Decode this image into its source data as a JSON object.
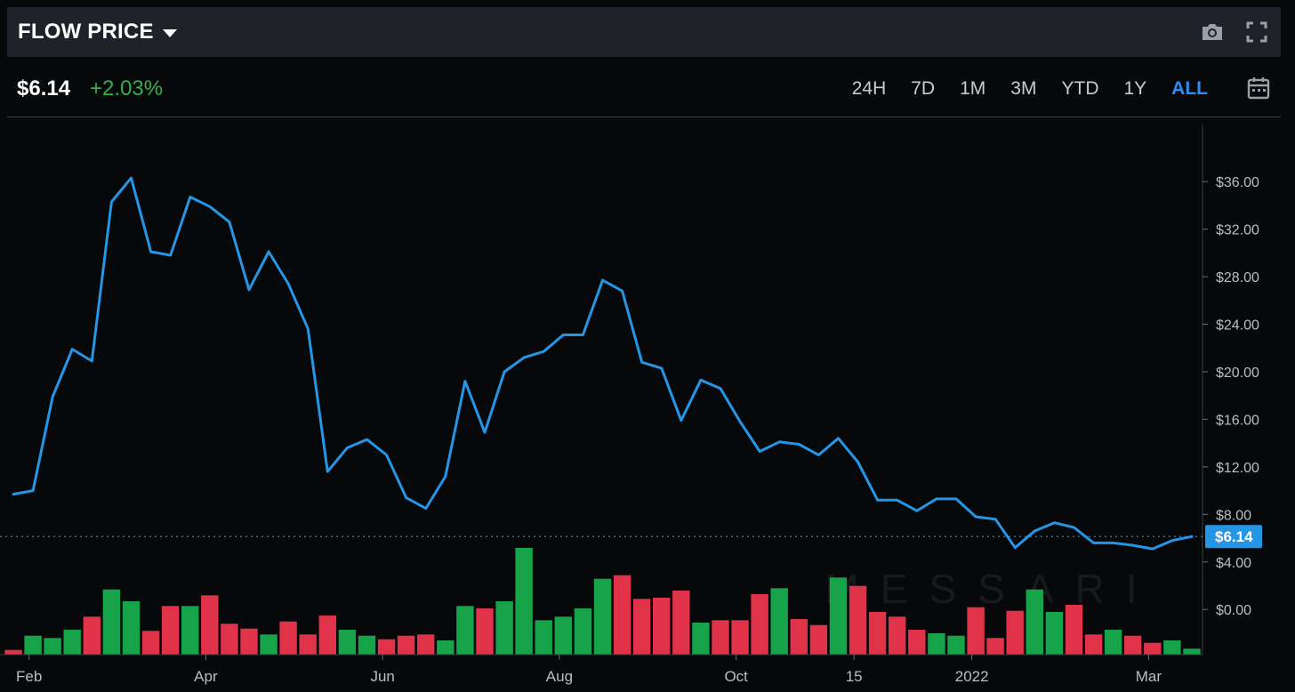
{
  "header": {
    "title": "FLOW PRICE",
    "camera_icon": "camera-icon",
    "fullscreen_icon": "fullscreen-icon"
  },
  "price_bar": {
    "price": "$6.14",
    "change": "+2.03%",
    "ranges": [
      "24H",
      "7D",
      "1M",
      "3M",
      "YTD",
      "1Y",
      "ALL"
    ],
    "active_range": "ALL",
    "calendar_icon": "calendar-icon"
  },
  "watermark": "MESSARI",
  "colors": {
    "line": "#2596e6",
    "up": "#16a34a",
    "down": "#e0334a",
    "accent": "#2f8cf3",
    "change": "#2fb24a",
    "price_tag": "#2596e6"
  },
  "chart_data": {
    "type": "line",
    "title": "FLOW PRICE",
    "ylim": [
      -3.8,
      40.8
    ],
    "y_ticks": [
      0,
      4,
      8,
      12,
      16,
      20,
      24,
      28,
      32,
      36
    ],
    "y_tick_labels": [
      "$0.00",
      "$4.00",
      "$8.00",
      "$12.00",
      "$16.00",
      "$20.00",
      "$24.00",
      "$28.00",
      "$32.00",
      "$36.00"
    ],
    "x_tick_labels": [
      "Feb",
      "Apr",
      "Jun",
      "Aug",
      "Oct",
      "15",
      "2022",
      "Mar"
    ],
    "x_tick_positions": [
      0.8,
      9.8,
      18.8,
      27.8,
      36.8,
      42.8,
      48.8,
      57.8
    ],
    "current_price": 6.14,
    "current_price_label": "$6.14",
    "series": [
      {
        "values": [
          9.7,
          10.0,
          17.9,
          21.9,
          20.9,
          34.3,
          36.3,
          30.1,
          29.8,
          34.7,
          33.9,
          32.6,
          26.9,
          30.1,
          27.4,
          23.6,
          11.6,
          13.6,
          14.3,
          13.0,
          9.4,
          8.5,
          11.2,
          19.2,
          14.9,
          20.0,
          21.2,
          21.7,
          23.1,
          23.1,
          27.7,
          26.8,
          20.8,
          20.3,
          15.9,
          19.3,
          18.6,
          15.8,
          13.3,
          14.1,
          13.9,
          13.0,
          14.4,
          12.4,
          9.2,
          9.2,
          8.3,
          9.3,
          9.3,
          7.8,
          7.6,
          5.2,
          6.6,
          7.3,
          6.9,
          5.6,
          5.6,
          5.4,
          5.1,
          5.8,
          6.14
        ]
      }
    ],
    "volume": [
      {
        "v": 0.4,
        "up": false
      },
      {
        "v": 1.6,
        "up": true
      },
      {
        "v": 1.4,
        "up": true
      },
      {
        "v": 2.1,
        "up": true
      },
      {
        "v": 3.2,
        "up": false
      },
      {
        "v": 5.5,
        "up": true
      },
      {
        "v": 4.5,
        "up": true
      },
      {
        "v": 2.0,
        "up": false
      },
      {
        "v": 4.1,
        "up": false
      },
      {
        "v": 4.1,
        "up": true
      },
      {
        "v": 5.0,
        "up": false
      },
      {
        "v": 2.6,
        "up": false
      },
      {
        "v": 2.2,
        "up": false
      },
      {
        "v": 1.7,
        "up": true
      },
      {
        "v": 2.8,
        "up": false
      },
      {
        "v": 1.7,
        "up": false
      },
      {
        "v": 3.3,
        "up": false
      },
      {
        "v": 2.1,
        "up": true
      },
      {
        "v": 1.6,
        "up": true
      },
      {
        "v": 1.3,
        "up": false
      },
      {
        "v": 1.6,
        "up": false
      },
      {
        "v": 1.7,
        "up": false
      },
      {
        "v": 1.2,
        "up": true
      },
      {
        "v": 4.1,
        "up": true
      },
      {
        "v": 3.9,
        "up": false
      },
      {
        "v": 4.5,
        "up": true
      },
      {
        "v": 9.0,
        "up": true
      },
      {
        "v": 2.9,
        "up": true
      },
      {
        "v": 3.2,
        "up": true
      },
      {
        "v": 3.9,
        "up": true
      },
      {
        "v": 6.4,
        "up": true
      },
      {
        "v": 6.7,
        "up": false
      },
      {
        "v": 4.7,
        "up": false
      },
      {
        "v": 4.8,
        "up": false
      },
      {
        "v": 5.4,
        "up": false
      },
      {
        "v": 2.7,
        "up": true
      },
      {
        "v": 2.9,
        "up": false
      },
      {
        "v": 2.9,
        "up": false
      },
      {
        "v": 5.1,
        "up": false
      },
      {
        "v": 5.6,
        "up": true
      },
      {
        "v": 3.0,
        "up": false
      },
      {
        "v": 2.5,
        "up": false
      },
      {
        "v": 6.5,
        "up": true
      },
      {
        "v": 5.8,
        "up": false
      },
      {
        "v": 3.6,
        "up": false
      },
      {
        "v": 3.2,
        "up": false
      },
      {
        "v": 2.1,
        "up": false
      },
      {
        "v": 1.8,
        "up": true
      },
      {
        "v": 1.6,
        "up": true
      },
      {
        "v": 4.0,
        "up": false
      },
      {
        "v": 1.4,
        "up": false
      },
      {
        "v": 3.7,
        "up": false
      },
      {
        "v": 5.5,
        "up": true
      },
      {
        "v": 3.6,
        "up": true
      },
      {
        "v": 4.2,
        "up": false
      },
      {
        "v": 1.7,
        "up": false
      },
      {
        "v": 2.1,
        "up": true
      },
      {
        "v": 1.6,
        "up": false
      },
      {
        "v": 1.0,
        "up": false
      },
      {
        "v": 1.2,
        "up": true
      },
      {
        "v": 0.5,
        "up": true
      }
    ],
    "volume_scale_max": 9.0,
    "grid": false,
    "legend": "none"
  }
}
